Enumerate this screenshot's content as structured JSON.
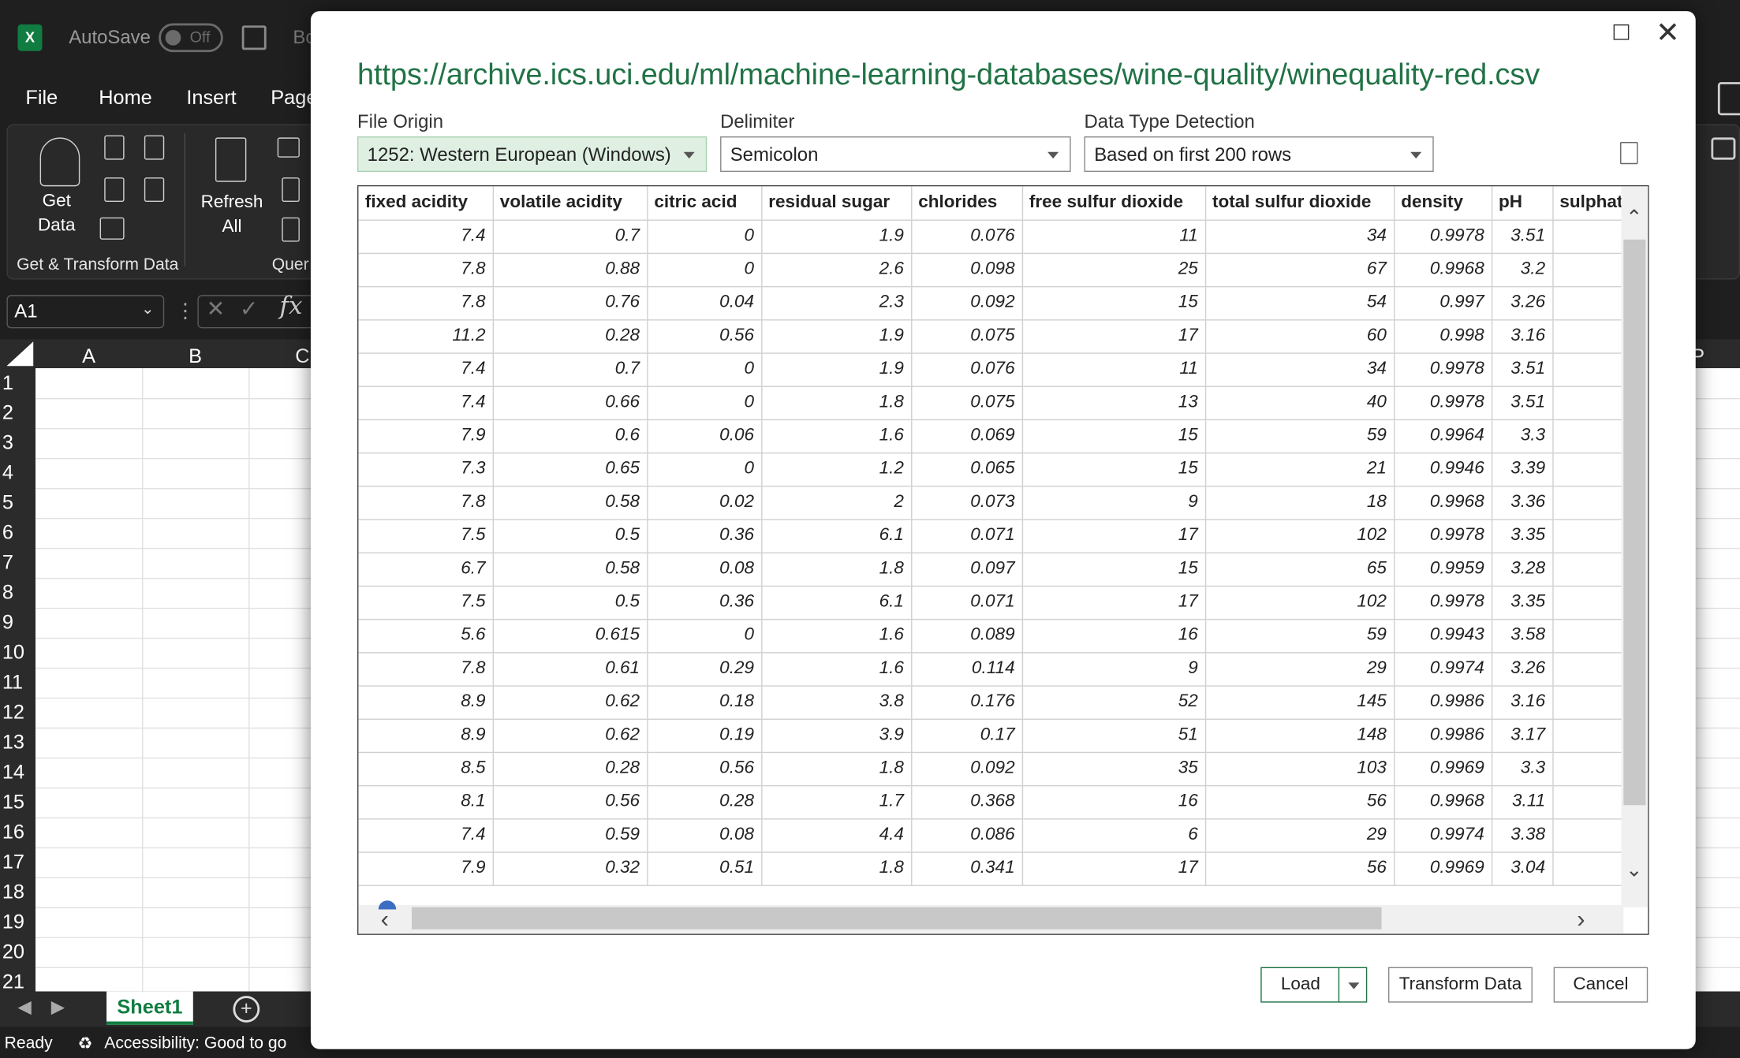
{
  "app": {
    "autosave_label": "AutoSave",
    "autosave_state": "Off",
    "doc_name_fragment": "Bo"
  },
  "menu": [
    "File",
    "Home",
    "Insert",
    "Page"
  ],
  "ribbon": {
    "get_data_label": "Get\nData",
    "refresh_all_label": "Refresh\nAll",
    "group_get_transform": "Get & Transform Data",
    "group_queries": "Quer"
  },
  "namebox": {
    "value": "A1"
  },
  "columns_visible": [
    "A",
    "B",
    "C",
    "P"
  ],
  "row_numbers": [
    "1",
    "2",
    "3",
    "4",
    "5",
    "6",
    "7",
    "8",
    "9",
    "10",
    "11",
    "12",
    "13",
    "14",
    "15",
    "16",
    "17",
    "18",
    "19",
    "20",
    "21"
  ],
  "sheet_tab": "Sheet1",
  "status": {
    "ready": "Ready",
    "accessibility": "Accessibility: Good to go"
  },
  "dialog": {
    "url": "https://archive.ics.uci.edu/ml/machine-learning-databases/wine-quality/winequality-red.csv",
    "file_origin_label": "File Origin",
    "file_origin_value": "1252: Western European (Windows)",
    "delimiter_label": "Delimiter",
    "delimiter_value": "Semicolon",
    "detection_label": "Data Type Detection",
    "detection_value": "Based on first 200 rows",
    "load_label": "Load",
    "transform_label": "Transform Data",
    "cancel_label": "Cancel"
  },
  "table": {
    "headers": [
      "fixed acidity",
      "volatile acidity",
      "citric acid",
      "residual sugar",
      "chlorides",
      "free sulfur dioxide",
      "total sulfur dioxide",
      "density",
      "pH",
      "sulphat"
    ],
    "rows": [
      [
        "7.4",
        "0.7",
        "0",
        "1.9",
        "0.076",
        "11",
        "34",
        "0.9978",
        "3.51",
        ""
      ],
      [
        "7.8",
        "0.88",
        "0",
        "2.6",
        "0.098",
        "25",
        "67",
        "0.9968",
        "3.2",
        ""
      ],
      [
        "7.8",
        "0.76",
        "0.04",
        "2.3",
        "0.092",
        "15",
        "54",
        "0.997",
        "3.26",
        ""
      ],
      [
        "11.2",
        "0.28",
        "0.56",
        "1.9",
        "0.075",
        "17",
        "60",
        "0.998",
        "3.16",
        ""
      ],
      [
        "7.4",
        "0.7",
        "0",
        "1.9",
        "0.076",
        "11",
        "34",
        "0.9978",
        "3.51",
        ""
      ],
      [
        "7.4",
        "0.66",
        "0",
        "1.8",
        "0.075",
        "13",
        "40",
        "0.9978",
        "3.51",
        ""
      ],
      [
        "7.9",
        "0.6",
        "0.06",
        "1.6",
        "0.069",
        "15",
        "59",
        "0.9964",
        "3.3",
        ""
      ],
      [
        "7.3",
        "0.65",
        "0",
        "1.2",
        "0.065",
        "15",
        "21",
        "0.9946",
        "3.39",
        ""
      ],
      [
        "7.8",
        "0.58",
        "0.02",
        "2",
        "0.073",
        "9",
        "18",
        "0.9968",
        "3.36",
        ""
      ],
      [
        "7.5",
        "0.5",
        "0.36",
        "6.1",
        "0.071",
        "17",
        "102",
        "0.9978",
        "3.35",
        ""
      ],
      [
        "6.7",
        "0.58",
        "0.08",
        "1.8",
        "0.097",
        "15",
        "65",
        "0.9959",
        "3.28",
        ""
      ],
      [
        "7.5",
        "0.5",
        "0.36",
        "6.1",
        "0.071",
        "17",
        "102",
        "0.9978",
        "3.35",
        ""
      ],
      [
        "5.6",
        "0.615",
        "0",
        "1.6",
        "0.089",
        "16",
        "59",
        "0.9943",
        "3.58",
        ""
      ],
      [
        "7.8",
        "0.61",
        "0.29",
        "1.6",
        "0.114",
        "9",
        "29",
        "0.9974",
        "3.26",
        ""
      ],
      [
        "8.9",
        "0.62",
        "0.18",
        "3.8",
        "0.176",
        "52",
        "145",
        "0.9986",
        "3.16",
        ""
      ],
      [
        "8.9",
        "0.62",
        "0.19",
        "3.9",
        "0.17",
        "51",
        "148",
        "0.9986",
        "3.17",
        ""
      ],
      [
        "8.5",
        "0.28",
        "0.56",
        "1.8",
        "0.092",
        "35",
        "103",
        "0.9969",
        "3.3",
        ""
      ],
      [
        "8.1",
        "0.56",
        "0.28",
        "1.7",
        "0.368",
        "16",
        "56",
        "0.9968",
        "3.11",
        ""
      ],
      [
        "7.4",
        "0.59",
        "0.08",
        "4.4",
        "0.086",
        "6",
        "29",
        "0.9974",
        "3.38",
        ""
      ],
      [
        "7.9",
        "0.32",
        "0.51",
        "1.8",
        "0.341",
        "17",
        "56",
        "0.9969",
        "3.04",
        ""
      ]
    ]
  },
  "colors": {
    "excel_green": "#107c41",
    "url_green": "#217346",
    "selected_bg": "#dff0e3"
  }
}
